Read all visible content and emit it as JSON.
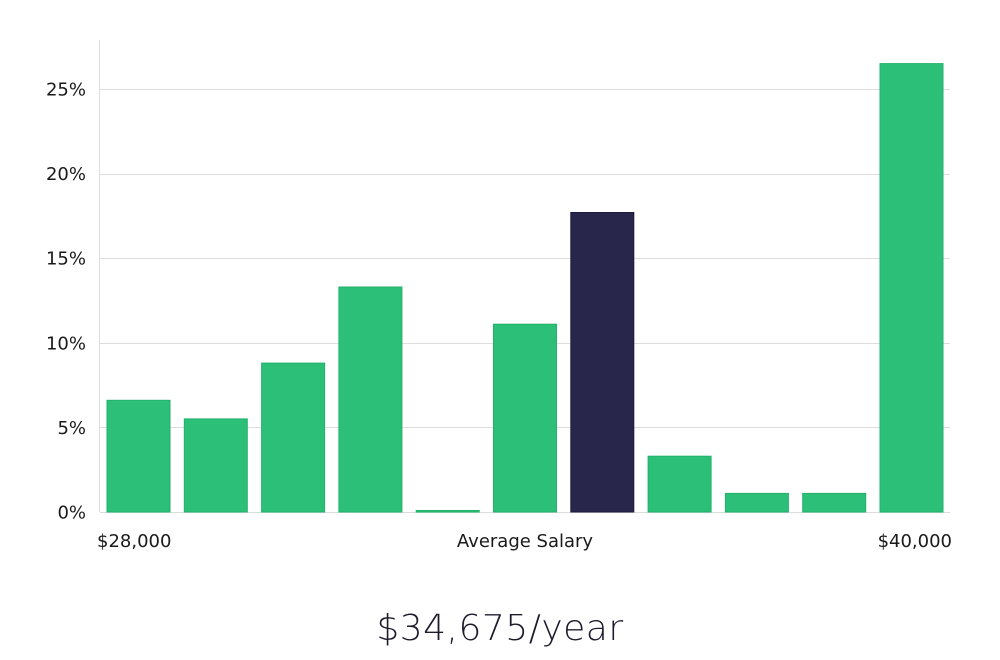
{
  "chart_data": {
    "type": "bar",
    "values": [
      6.6,
      5.5,
      8.8,
      13.3,
      0.05,
      11.1,
      17.7,
      3.3,
      1.1,
      1.1,
      26.5
    ],
    "highlight_index": 6,
    "x_labels": {
      "left": "$28,000",
      "center": "Average Salary",
      "right": "$40,000"
    },
    "yticks": [
      "0%",
      "5%",
      "10%",
      "15%",
      "20%",
      "25%"
    ],
    "ytick_values": [
      0,
      5,
      10,
      15,
      20,
      25
    ],
    "ylim": [
      0,
      28
    ],
    "grid": true,
    "colors": {
      "bar": "#2bbf77",
      "bar_stroke": "#22b26b",
      "highlight": "#28264a",
      "highlight_stroke": "#1c1a3c"
    }
  },
  "summary": {
    "average_salary": "$34,675/year"
  }
}
